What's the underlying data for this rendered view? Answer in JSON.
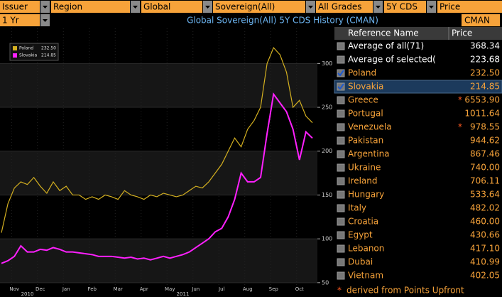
{
  "toolbar": {
    "fields": [
      "Issuer",
      "Region",
      "Global",
      "Sovereign(All)",
      "All Grades",
      "5Y CDS",
      "Price"
    ],
    "period": "1 Yr",
    "title": "Global Sovereign(All) 5Y CDS History (CMAN)",
    "source": "CMAN"
  },
  "chart_data": {
    "type": "line",
    "categories": [
      null,
      null,
      "Nov",
      null,
      null,
      null,
      "Dec",
      null,
      null,
      null,
      "Jan",
      null,
      null,
      null,
      "Feb",
      null,
      null,
      null,
      "Mar",
      null,
      null,
      null,
      "Apr",
      null,
      null,
      null,
      "May",
      null,
      null,
      null,
      "Jun",
      null,
      null,
      null,
      "Jul",
      null,
      null,
      null,
      "Aug",
      null,
      null,
      null,
      "Sep",
      null,
      null,
      null,
      "Oct",
      null,
      null
    ],
    "year_labels": [
      null,
      null,
      null,
      null,
      "2010",
      null,
      null,
      null,
      null,
      null,
      null,
      null,
      null,
      null,
      null,
      null,
      null,
      null,
      null,
      null,
      null,
      null,
      null,
      null,
      null,
      null,
      null,
      null,
      "2011",
      null,
      null,
      null,
      null,
      null,
      null,
      null,
      null,
      null,
      null,
      null,
      null,
      null,
      null,
      null,
      null,
      null,
      null,
      null,
      null
    ],
    "series": [
      {
        "name": "Poland",
        "legend_value": "232.50",
        "color": "#d4b020",
        "values": [
          107,
          140,
          158,
          165,
          162,
          170,
          160,
          152,
          165,
          155,
          160,
          150,
          150,
          145,
          148,
          145,
          150,
          148,
          145,
          155,
          150,
          148,
          145,
          150,
          148,
          152,
          150,
          148,
          150,
          155,
          160,
          158,
          165,
          175,
          185,
          200,
          215,
          205,
          225,
          235,
          250,
          300,
          318,
          310,
          290,
          250,
          258,
          240,
          232.5
        ]
      },
      {
        "name": "Slovakia",
        "legend_value": "214.85",
        "color": "#ff20ff",
        "values": [
          72,
          75,
          80,
          92,
          85,
          85,
          88,
          87,
          90,
          88,
          85,
          85,
          84,
          83,
          82,
          80,
          80,
          80,
          79,
          78,
          79,
          77,
          78,
          76,
          78,
          80,
          78,
          80,
          82,
          85,
          90,
          95,
          100,
          108,
          112,
          125,
          145,
          175,
          165,
          165,
          170,
          220,
          265,
          255,
          245,
          225,
          190,
          222,
          214.85
        ]
      }
    ],
    "ylim": [
      45,
      340
    ],
    "yticks": [
      50,
      100,
      150,
      200,
      250,
      300
    ],
    "grid": true
  },
  "table": {
    "columns": [
      "Reference Name",
      "Price"
    ],
    "rows": [
      {
        "name": "Average of all(71)",
        "price": "368.34",
        "checked": false,
        "derived": false,
        "color": "#ffffff"
      },
      {
        "name": "Average of selected(",
        "price": "223.68",
        "checked": false,
        "derived": false,
        "color": "#ffffff"
      },
      {
        "name": "Poland",
        "price": "232.50",
        "checked": true,
        "derived": false,
        "color": "#f7a33a"
      },
      {
        "name": "Slovakia",
        "price": "214.85",
        "checked": true,
        "derived": false,
        "color": "#f7a33a",
        "selected": true
      },
      {
        "name": "Greece",
        "price": "6553.90",
        "checked": false,
        "derived": true,
        "color": "#f7a33a"
      },
      {
        "name": "Portugal",
        "price": "1011.64",
        "checked": false,
        "derived": false,
        "color": "#f7a33a"
      },
      {
        "name": "Venezuela",
        "price": "978.55",
        "checked": false,
        "derived": true,
        "color": "#f7a33a"
      },
      {
        "name": "Pakistan",
        "price": "944.62",
        "checked": false,
        "derived": false,
        "color": "#f7a33a"
      },
      {
        "name": "Argentina",
        "price": "867.46",
        "checked": false,
        "derived": false,
        "color": "#f7a33a"
      },
      {
        "name": "Ukraine",
        "price": "740.00",
        "checked": false,
        "derived": false,
        "color": "#f7a33a"
      },
      {
        "name": "Ireland",
        "price": "706.11",
        "checked": false,
        "derived": false,
        "color": "#f7a33a"
      },
      {
        "name": "Hungary",
        "price": "533.64",
        "checked": false,
        "derived": false,
        "color": "#f7a33a"
      },
      {
        "name": "Italy",
        "price": "482.02",
        "checked": false,
        "derived": false,
        "color": "#f7a33a"
      },
      {
        "name": "Croatia",
        "price": "460.00",
        "checked": false,
        "derived": false,
        "color": "#f7a33a"
      },
      {
        "name": "Egypt",
        "price": "430.66",
        "checked": false,
        "derived": false,
        "color": "#f7a33a"
      },
      {
        "name": "Lebanon",
        "price": "417.10",
        "checked": false,
        "derived": false,
        "color": "#f7a33a"
      },
      {
        "name": "Dubai",
        "price": "410.99",
        "checked": false,
        "derived": false,
        "color": "#f7a33a"
      },
      {
        "name": "Vietnam",
        "price": "402.05",
        "checked": false,
        "derived": false,
        "color": "#f7a33a"
      }
    ],
    "footnote": {
      "mark": "*",
      "text": "derived from Points Upfront"
    }
  }
}
